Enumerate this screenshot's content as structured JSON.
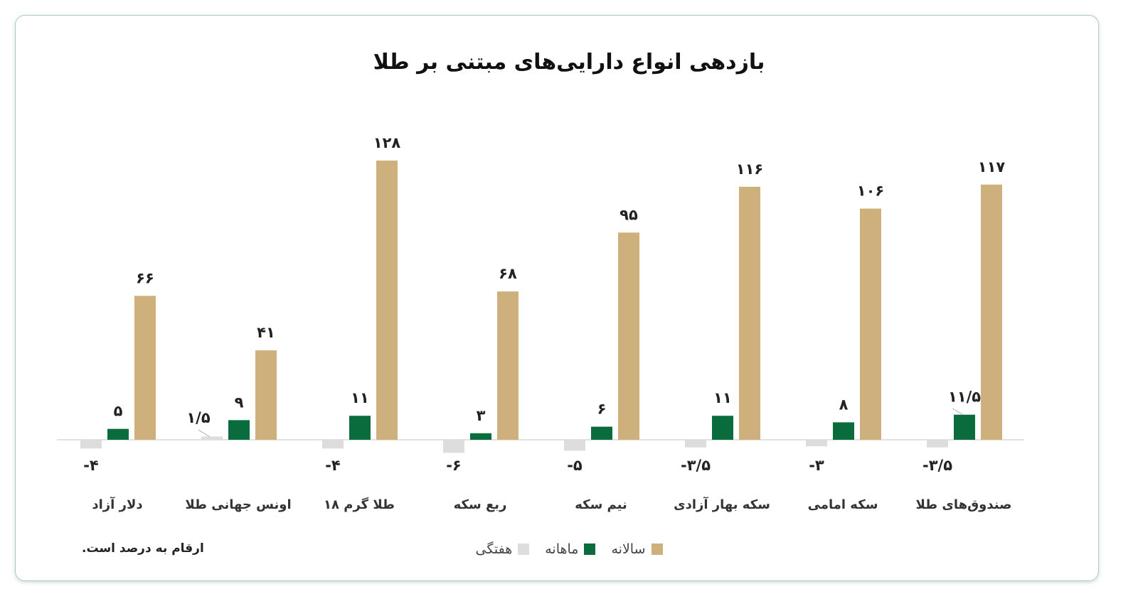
{
  "chart_data": {
    "type": "bar",
    "title": "بازدهی انواع دارایی‌های مبتنی بر طلا",
    "categories": [
      "دلار آزاد",
      "اونس جهانی طلا",
      "طلا گرم ۱۸",
      "ربع سکه",
      "نیم سکه",
      "سکه بهار آزادی",
      "سکه امامی",
      "صندوق‌های طلا"
    ],
    "series": [
      {
        "name": "هفتگی",
        "color": "#dddddd",
        "values": [
          -4,
          1.5,
          -4,
          -6,
          -5,
          -3.5,
          -3,
          -3.5
        ],
        "labels": [
          "-۴",
          "۱/۵",
          "-۴",
          "-۶",
          "-۵",
          "-۳/۵",
          "-۳",
          "-۳/۵"
        ]
      },
      {
        "name": "ماهانه",
        "color": "#0a6b3c",
        "values": [
          5,
          9,
          11,
          3,
          6,
          11,
          8,
          11.5
        ],
        "labels": [
          "۵",
          "۹",
          "۱۱",
          "۳",
          "۶",
          "۱۱",
          "۸",
          "۱۱/۵"
        ]
      },
      {
        "name": "سالانه",
        "color": "#cdb07b",
        "values": [
          66,
          41,
          128,
          68,
          95,
          116,
          106,
          117
        ],
        "labels": [
          "۶۶",
          "۴۱",
          "۱۲۸",
          "۶۸",
          "۹۵",
          "۱۱۶",
          "۱۰۶",
          "۱۱۷"
        ]
      }
    ],
    "note": "ارقام به درصد است.",
    "legend_position": "bottom",
    "grid": false
  }
}
